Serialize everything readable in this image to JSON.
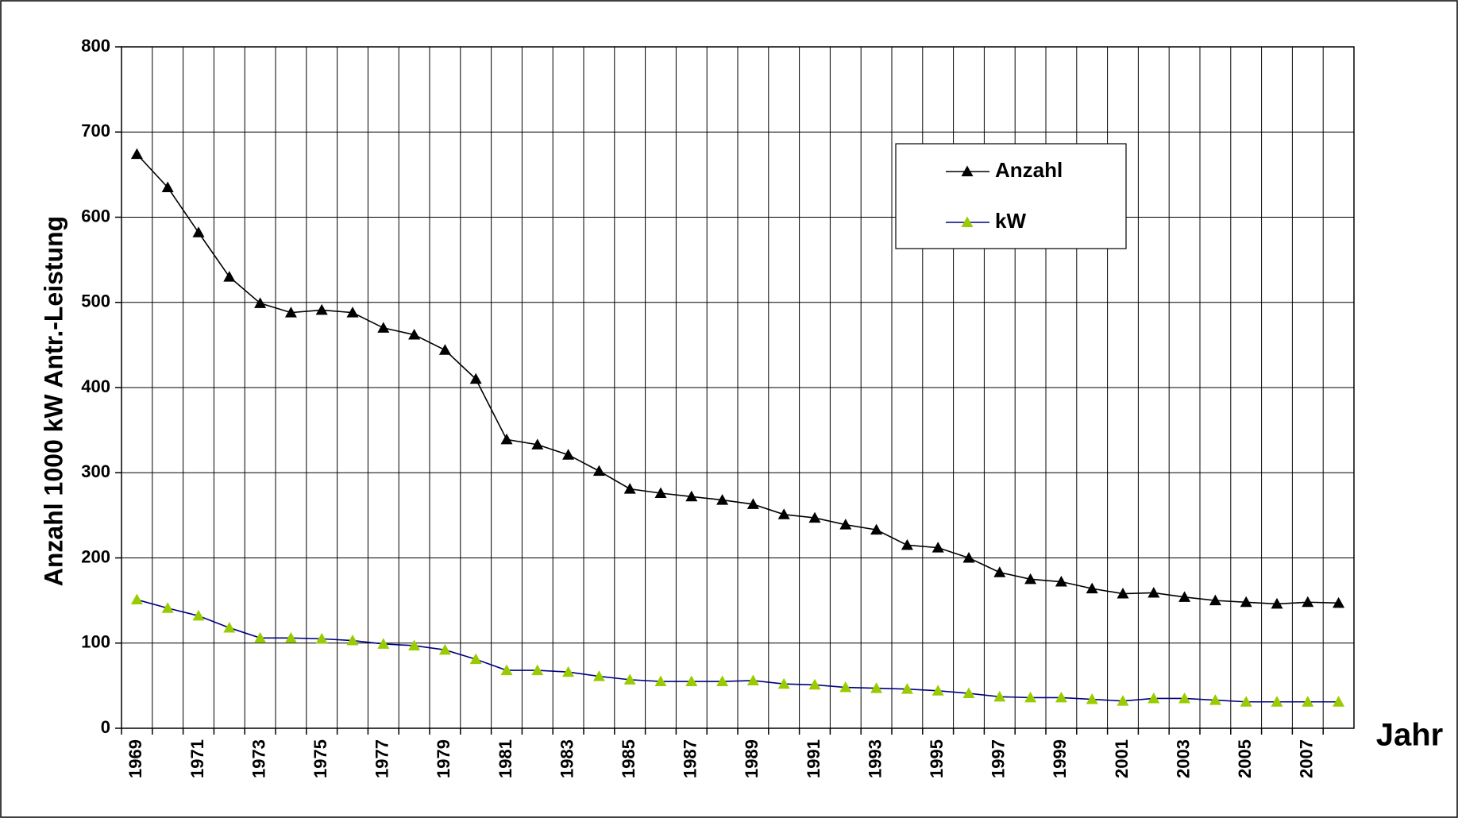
{
  "chart_data": {
    "type": "line",
    "y_label": "Anzahl  1000 kW Antr.-Leistung",
    "x_label": "Jahr",
    "categories": [
      "1969",
      null,
      "1971",
      null,
      "1973",
      null,
      "1975",
      null,
      "1977",
      null,
      "1979",
      null,
      "1981",
      null,
      "1983",
      null,
      "1985",
      null,
      "1987",
      null,
      "1989",
      null,
      "1991",
      null,
      "1993",
      null,
      "1995",
      null,
      "1997",
      null,
      "1999",
      null,
      "2001",
      null,
      "2003",
      null,
      "2005",
      null,
      "2007",
      null
    ],
    "series": [
      {
        "name": "Anzahl",
        "color": "#000000",
        "marker_color": "#000000",
        "values": [
          674,
          635,
          582,
          530,
          499,
          488,
          491,
          488,
          470,
          462,
          444,
          410,
          339,
          333,
          321,
          302,
          281,
          276,
          272,
          268,
          263,
          251,
          247,
          239,
          233,
          215,
          212,
          200,
          183,
          175,
          172,
          164,
          158,
          159,
          154,
          150,
          148,
          146,
          148,
          147
        ]
      },
      {
        "name": "kW",
        "color": "#000080",
        "marker_color": "#99cc00",
        "values": [
          151,
          141,
          132,
          118,
          106,
          106,
          105,
          103,
          99,
          97,
          92,
          81,
          68,
          68,
          66,
          61,
          57,
          55,
          55,
          55,
          56,
          52,
          51,
          48,
          47,
          46,
          44,
          41,
          37,
          36,
          36,
          34,
          32,
          35,
          35,
          33,
          31,
          31,
          31,
          31
        ]
      }
    ],
    "ylim": [
      0,
      800
    ],
    "yticks": [
      0,
      100,
      200,
      300,
      400,
      500,
      600,
      700,
      800
    ],
    "grid": true,
    "legend": "upper right"
  }
}
